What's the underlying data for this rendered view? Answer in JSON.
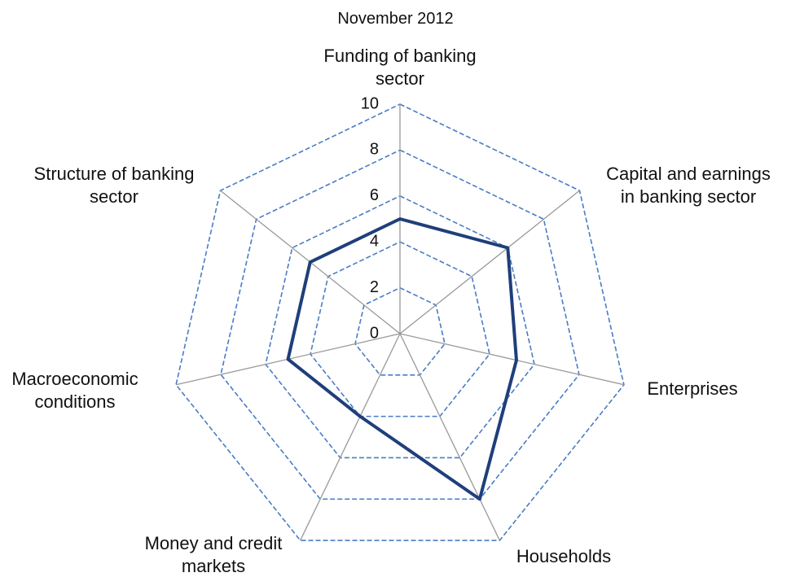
{
  "chart_data": {
    "type": "radar",
    "title": "November 2012",
    "categories": [
      "Funding of banking sector",
      "Capital and earnings in banking sector",
      "Enterprises",
      "Households",
      "Money and credit markets",
      "Macroeconomic conditions",
      "Structure of banking sector"
    ],
    "values": [
      5,
      6,
      5.2,
      8,
      4,
      5,
      5
    ],
    "color": "#1f3f7a",
    "grid_color": "#4a7cc4",
    "ylim": [
      0,
      10
    ],
    "yticks": [
      0,
      2,
      4,
      6,
      8,
      10
    ],
    "grid": true
  }
}
